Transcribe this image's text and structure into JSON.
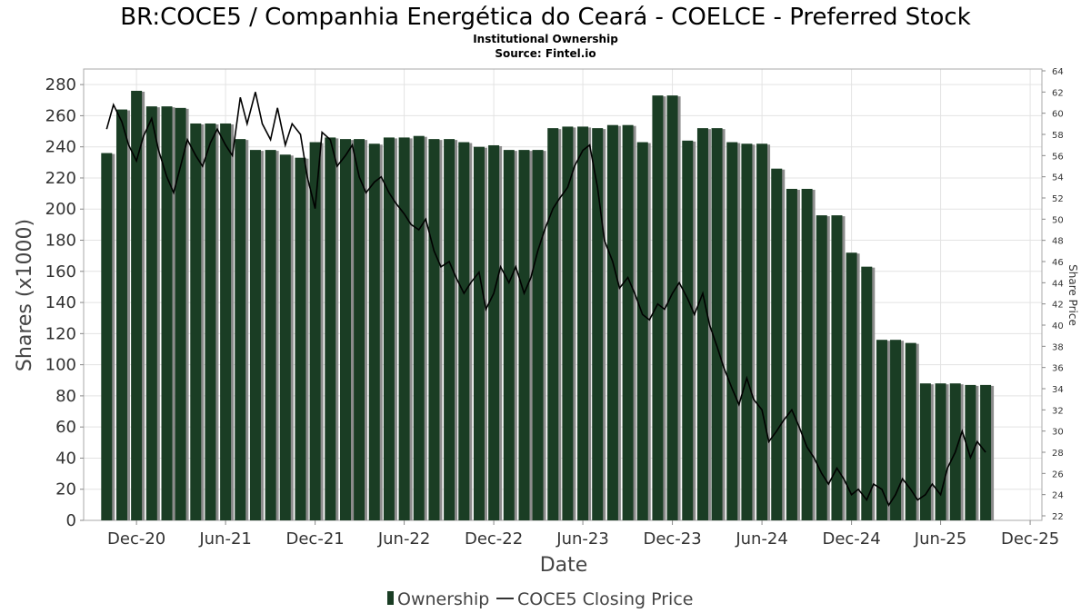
{
  "colors": {
    "bar": "#1a3d24",
    "bar_shadow": "#8c8c8c",
    "price_line": "#000000",
    "grid": "#e3e3e3"
  },
  "chart_data": {
    "type": "bar",
    "title": "BR:COCE5 / Companhia Energética do Ceará - COELCE - Preferred Stock",
    "subtitle_lines": [
      "Institutional Ownership",
      "Source: Fintel.io"
    ],
    "xlabel": "Date",
    "ylabel": "Shares (x1000)",
    "y2label": "Share Price",
    "ylim": [
      0,
      290
    ],
    "y2lim": [
      22,
      64
    ],
    "xlim": [
      "2020-08-15",
      "2025-12-25"
    ],
    "yticks": [
      0,
      20,
      40,
      60,
      80,
      100,
      120,
      140,
      160,
      180,
      200,
      220,
      240,
      260,
      280
    ],
    "y2ticks": [
      22,
      24,
      26,
      28,
      30,
      32,
      34,
      36,
      38,
      40,
      42,
      44,
      46,
      48,
      50,
      52,
      54,
      56,
      58,
      60,
      62,
      64
    ],
    "xticks": [
      {
        "date": "2020-12-01",
        "label": "Dec-20"
      },
      {
        "date": "2021-06-01",
        "label": "Jun-21"
      },
      {
        "date": "2021-12-01",
        "label": "Dec-21"
      },
      {
        "date": "2022-06-01",
        "label": "Jun-22"
      },
      {
        "date": "2022-12-01",
        "label": "Dec-22"
      },
      {
        "date": "2023-06-01",
        "label": "Jun-23"
      },
      {
        "date": "2023-12-01",
        "label": "Dec-23"
      },
      {
        "date": "2024-06-01",
        "label": "Jun-24"
      },
      {
        "date": "2024-12-01",
        "label": "Dec-24"
      },
      {
        "date": "2025-06-01",
        "label": "Jun-25"
      },
      {
        "date": "2025-12-01",
        "label": "Dec-25"
      }
    ],
    "legend": {
      "placement": "bottom-center",
      "entries": [
        "Ownership",
        "COCE5 Closing Price"
      ]
    },
    "grid": true,
    "ownership": {
      "name": "Ownership",
      "dates": [
        "2020-10-01",
        "2020-11-01",
        "2020-12-01",
        "2021-01-01",
        "2021-02-01",
        "2021-03-01",
        "2021-04-01",
        "2021-05-01",
        "2021-06-01",
        "2021-07-01",
        "2021-08-01",
        "2021-09-01",
        "2021-10-01",
        "2021-11-01",
        "2021-12-01",
        "2022-01-01",
        "2022-02-01",
        "2022-03-01",
        "2022-04-01",
        "2022-05-01",
        "2022-06-01",
        "2022-07-01",
        "2022-08-01",
        "2022-09-01",
        "2022-10-01",
        "2022-11-01",
        "2022-12-01",
        "2023-01-01",
        "2023-02-01",
        "2023-03-01",
        "2023-04-01",
        "2023-05-01",
        "2023-06-01",
        "2023-07-01",
        "2023-08-01",
        "2023-09-01",
        "2023-10-01",
        "2023-11-01",
        "2023-12-01",
        "2024-01-01",
        "2024-02-01",
        "2024-03-01",
        "2024-04-01",
        "2024-05-01",
        "2024-06-01",
        "2024-07-01",
        "2024-08-01",
        "2024-09-01",
        "2024-10-01",
        "2024-11-01",
        "2024-12-01",
        "2025-01-01",
        "2025-02-01",
        "2025-03-01",
        "2025-04-01",
        "2025-05-01",
        "2025-06-01",
        "2025-07-01",
        "2025-08-01",
        "2025-09-01"
      ],
      "values": [
        236,
        264,
        276,
        266,
        266,
        265,
        255,
        255,
        255,
        245,
        238,
        238,
        235,
        233,
        243,
        246,
        245,
        245,
        242,
        246,
        246,
        247,
        245,
        245,
        243,
        240,
        241,
        238,
        238,
        238,
        252,
        253,
        253,
        252,
        254,
        254,
        243,
        273,
        273,
        244,
        252,
        252,
        243,
        242,
        242,
        226,
        213,
        213,
        196,
        196,
        172,
        163,
        116,
        116,
        114,
        88,
        88,
        88,
        87,
        87
      ]
    },
    "price": {
      "name": "COCE5 Closing Price",
      "dates": [
        "2020-10-01",
        "2020-10-15",
        "2020-11-01",
        "2020-11-15",
        "2020-12-01",
        "2020-12-15",
        "2021-01-01",
        "2021-01-15",
        "2021-02-01",
        "2021-02-15",
        "2021-03-01",
        "2021-03-15",
        "2021-04-01",
        "2021-04-15",
        "2021-05-01",
        "2021-05-15",
        "2021-06-01",
        "2021-06-15",
        "2021-07-01",
        "2021-07-15",
        "2021-08-01",
        "2021-08-15",
        "2021-09-01",
        "2021-09-15",
        "2021-10-01",
        "2021-10-15",
        "2021-11-01",
        "2021-11-15",
        "2021-12-01",
        "2021-12-15",
        "2022-01-01",
        "2022-01-15",
        "2022-02-01",
        "2022-02-15",
        "2022-03-01",
        "2022-03-15",
        "2022-04-01",
        "2022-04-15",
        "2022-05-01",
        "2022-05-15",
        "2022-06-01",
        "2022-06-15",
        "2022-07-01",
        "2022-07-15",
        "2022-08-01",
        "2022-08-15",
        "2022-09-01",
        "2022-09-15",
        "2022-10-01",
        "2022-10-15",
        "2022-11-01",
        "2022-11-15",
        "2022-12-01",
        "2022-12-15",
        "2023-01-01",
        "2023-01-15",
        "2023-02-01",
        "2023-02-15",
        "2023-03-01",
        "2023-03-15",
        "2023-04-01",
        "2023-04-15",
        "2023-05-01",
        "2023-05-15",
        "2023-06-01",
        "2023-06-15",
        "2023-07-01",
        "2023-07-15",
        "2023-08-01",
        "2023-08-15",
        "2023-09-01",
        "2023-09-15",
        "2023-10-01",
        "2023-10-15",
        "2023-11-01",
        "2023-11-15",
        "2023-12-01",
        "2023-12-15",
        "2024-01-01",
        "2024-01-15",
        "2024-02-01",
        "2024-02-15",
        "2024-03-01",
        "2024-03-15",
        "2024-04-01",
        "2024-04-15",
        "2024-05-01",
        "2024-05-15",
        "2024-06-01",
        "2024-06-15",
        "2024-07-01",
        "2024-07-15",
        "2024-08-01",
        "2024-08-15",
        "2024-09-01",
        "2024-09-15",
        "2024-10-01",
        "2024-10-15",
        "2024-11-01",
        "2024-11-15",
        "2024-12-01",
        "2024-12-15",
        "2025-01-01",
        "2025-01-15",
        "2025-02-01",
        "2025-02-15",
        "2025-03-01",
        "2025-03-15",
        "2025-04-01",
        "2025-04-15",
        "2025-05-01",
        "2025-05-15",
        "2025-06-01",
        "2025-06-15",
        "2025-07-01",
        "2025-07-15",
        "2025-08-01",
        "2025-08-15",
        "2025-09-01"
      ],
      "values": [
        58.5,
        60.8,
        59.2,
        57.0,
        55.5,
        57.8,
        59.5,
        56.5,
        54.0,
        52.5,
        55.0,
        57.5,
        56.0,
        55.0,
        57.2,
        58.5,
        57.0,
        56.0,
        61.5,
        59.0,
        62.0,
        59.0,
        57.5,
        60.5,
        57.0,
        59.0,
        58.0,
        54.0,
        51.0,
        58.2,
        57.5,
        55.0,
        56.0,
        57.0,
        54.0,
        52.5,
        53.5,
        54.0,
        52.5,
        51.5,
        50.5,
        49.5,
        49.0,
        50.0,
        47.0,
        45.5,
        46.0,
        44.5,
        43.0,
        44.0,
        45.0,
        41.5,
        43.0,
        45.5,
        44.0,
        45.5,
        43.0,
        44.5,
        47.0,
        49.0,
        51.0,
        52.0,
        53.0,
        55.0,
        56.5,
        57.0,
        53.0,
        48.0,
        46.0,
        43.5,
        44.5,
        43.0,
        41.0,
        40.5,
        42.0,
        41.5,
        43.0,
        44.0,
        42.5,
        41.0,
        43.0,
        40.0,
        38.0,
        36.0,
        34.0,
        32.5,
        35.0,
        33.0,
        32.0,
        29.0,
        30.0,
        31.0,
        32.0,
        30.5,
        28.5,
        27.5,
        26.0,
        25.0,
        26.5,
        25.5,
        24.0,
        24.5,
        23.5,
        25.0,
        24.5,
        23.0,
        24.0,
        25.5,
        24.5,
        23.5,
        24.0,
        25.0,
        24.0,
        26.5,
        28.0,
        30.0,
        27.5,
        29.0,
        28.0
      ]
    }
  }
}
